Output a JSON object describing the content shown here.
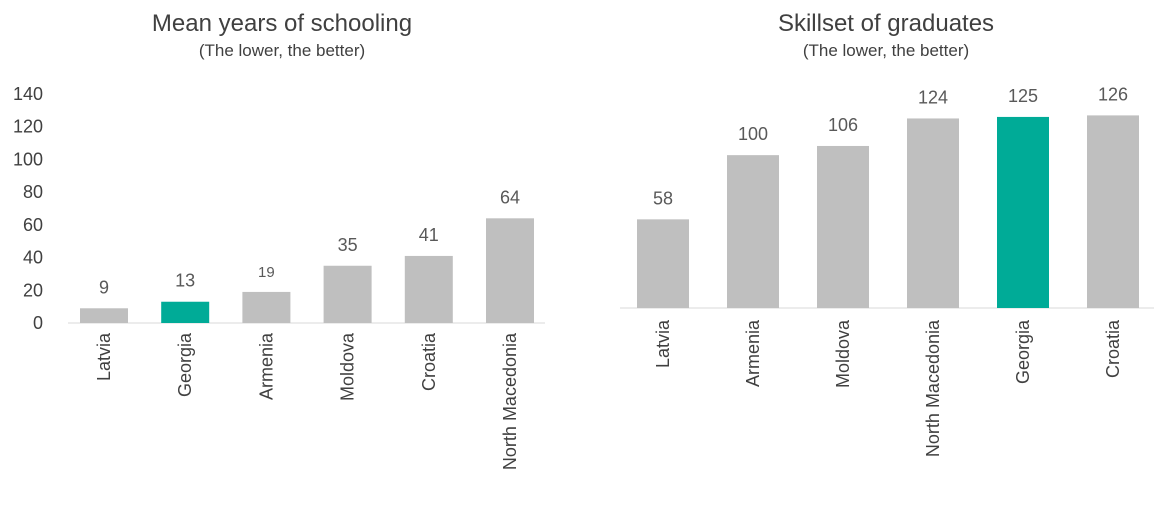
{
  "chart_data": [
    {
      "type": "bar",
      "title": "Mean years of schooling",
      "subtitle": "(The lower, the better)",
      "categories": [
        "Latvia",
        "Georgia",
        "Armenia",
        "Moldova",
        "Croatia",
        "North Macedonia"
      ],
      "values": [
        9,
        13,
        19,
        35,
        41,
        64
      ],
      "highlight": "Georgia",
      "yticks": [
        0,
        20,
        40,
        60,
        80,
        100,
        120,
        140
      ],
      "ylim": [
        0,
        140
      ],
      "grid": false,
      "legend": "none"
    },
    {
      "type": "bar",
      "title": "Skillset of graduates",
      "subtitle": "(The lower, the better)",
      "categories": [
        "Latvia",
        "Armenia",
        "Moldova",
        "North Macedonia",
        "Georgia",
        "Croatia"
      ],
      "values": [
        58,
        100,
        106,
        124,
        125,
        126
      ],
      "highlight": "Georgia",
      "ylim": [
        0,
        140
      ],
      "grid": false,
      "legend": "none"
    }
  ],
  "colors": {
    "bar": "#bfbfbf",
    "highlight": "#00ab97"
  }
}
